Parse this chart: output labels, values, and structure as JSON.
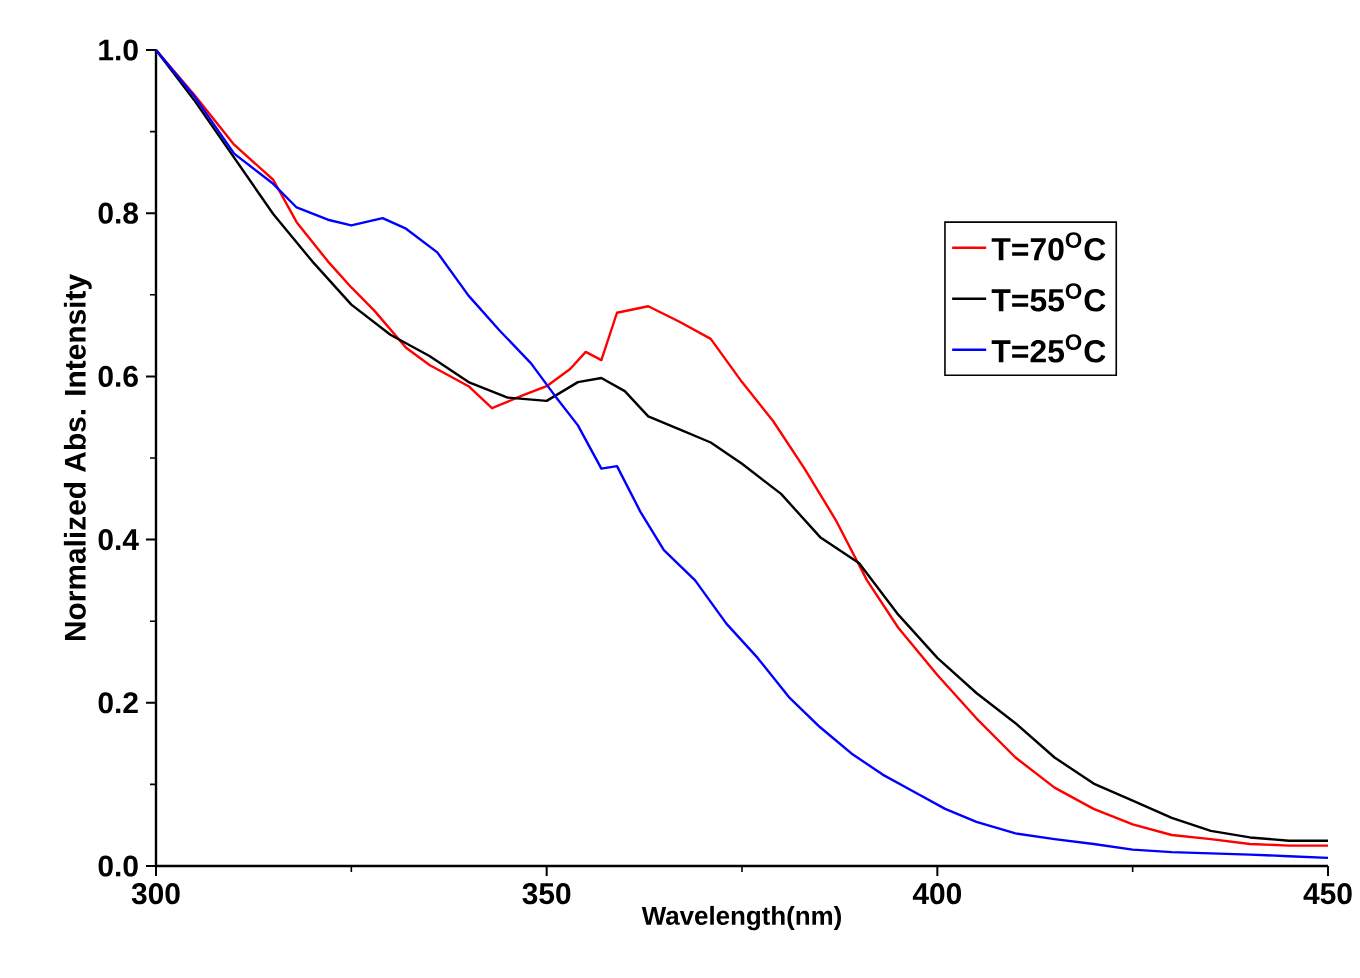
{
  "chart_data": {
    "type": "line",
    "xlabel": "Wavelength(nm)",
    "ylabel": "Normalized Abs. Intensity",
    "xlim": [
      300,
      450
    ],
    "xticks": [
      300,
      350,
      400,
      450
    ],
    "ylim": [
      0,
      1
    ],
    "yticks": [
      {
        "value": 0,
        "label": "0.0"
      },
      0.2,
      0.4,
      0.6,
      0.8,
      {
        "value": 1,
        "label": "1.0"
      }
    ],
    "legend": "right",
    "grid": false,
    "line_style": "solid",
    "series": [
      {
        "name": "T=70$^{O}$C",
        "color": "#ff0000",
        "x": [
          300,
          305,
          310,
          315,
          318,
          322,
          325,
          328,
          332,
          335,
          340,
          343,
          347,
          350,
          353,
          355,
          357,
          359,
          363,
          367,
          371,
          375,
          379,
          383,
          387,
          391,
          395,
          400,
          405,
          410,
          415,
          420,
          425,
          430,
          435,
          440,
          445,
          450
        ],
        "values": [
          1.0,
          0.944,
          0.884,
          0.841,
          0.789,
          0.741,
          0.709,
          0.68,
          0.635,
          0.614,
          0.588,
          0.561,
          0.577,
          0.588,
          0.609,
          0.63,
          0.62,
          0.678,
          0.686,
          0.667,
          0.646,
          0.593,
          0.545,
          0.487,
          0.424,
          0.35,
          0.292,
          0.234,
          0.181,
          0.133,
          0.096,
          0.07,
          0.051,
          0.038,
          0.033,
          0.027,
          0.025,
          0.025
        ]
      },
      {
        "name": "T=55$^{O}$C",
        "color": "#000000",
        "x": [
          300,
          305,
          310,
          315,
          320,
          325,
          330,
          335,
          340,
          345,
          350,
          354,
          357,
          360,
          363,
          367,
          371,
          375,
          380,
          385,
          390,
          395,
          400,
          405,
          410,
          415,
          420,
          425,
          430,
          435,
          440,
          445,
          450
        ],
        "values": [
          1.0,
          0.937,
          0.868,
          0.799,
          0.741,
          0.688,
          0.651,
          0.625,
          0.593,
          0.574,
          0.57,
          0.593,
          0.598,
          0.582,
          0.551,
          0.535,
          0.519,
          0.493,
          0.456,
          0.403,
          0.371,
          0.308,
          0.255,
          0.212,
          0.175,
          0.133,
          0.101,
          0.08,
          0.059,
          0.043,
          0.035,
          0.031,
          0.031
        ]
      },
      {
        "name": "T=25$^{O}$C",
        "color": "#0000ff",
        "x": [
          300,
          305,
          310,
          315,
          318,
          322,
          325,
          329,
          332,
          336,
          340,
          344,
          348,
          351,
          354,
          357,
          359,
          362,
          365,
          369,
          373,
          377,
          381,
          385,
          389,
          393,
          397,
          401,
          405,
          410,
          415,
          420,
          425,
          430,
          440,
          445,
          450
        ],
        "values": [
          1.0,
          0.942,
          0.873,
          0.836,
          0.807,
          0.792,
          0.785,
          0.794,
          0.781,
          0.752,
          0.699,
          0.656,
          0.616,
          0.577,
          0.54,
          0.487,
          0.49,
          0.434,
          0.387,
          0.35,
          0.297,
          0.255,
          0.207,
          0.17,
          0.138,
          0.112,
          0.091,
          0.07,
          0.054,
          0.04,
          0.033,
          0.027,
          0.02,
          0.017,
          0.014,
          0.012,
          0.01
        ]
      }
    ]
  }
}
